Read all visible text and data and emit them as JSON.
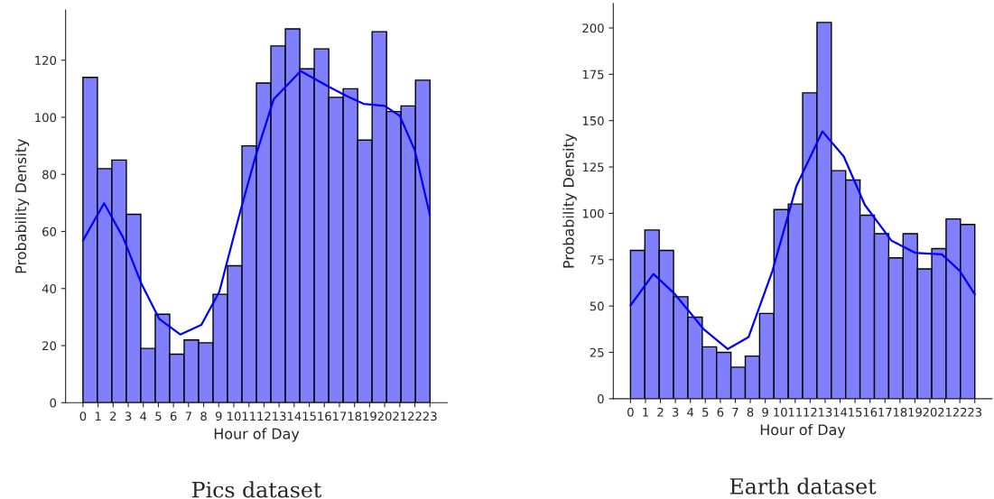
{
  "chart_data": [
    {
      "type": "histogram",
      "xlabel": "Hour of Day",
      "ylabel": "Probability Density",
      "annotations": [
        "Pics dataset"
      ],
      "bins": [
        0,
        0.958,
        1.917,
        2.875,
        3.833,
        4.792,
        5.75,
        6.708,
        7.667,
        8.625,
        9.583,
        10.542,
        11.5,
        12.458,
        13.417,
        14.375,
        15.333,
        16.292,
        17.25,
        18.208,
        19.167,
        20.125,
        21.083,
        22.042,
        23
      ],
      "values": [
        114,
        82,
        85,
        66,
        19,
        31,
        17,
        22,
        21,
        38,
        48,
        90,
        112,
        125,
        131,
        117,
        124,
        107,
        110,
        92,
        130,
        102,
        104,
        113
      ],
      "color": "#8080ff",
      "series": [
        {
          "type": "line",
          "color": "#0000ff",
          "x": [
            0,
            1.4,
            2.66,
            3.85,
            5.05,
            6.45,
            7.85,
            9.04,
            10.44,
            11.44,
            12.64,
            14.43,
            16.2,
            17.43,
            18.6,
            20.0,
            21.0,
            22.0,
            23
          ],
          "values": [
            56.8,
            69.9,
            57.9,
            42,
            29.4,
            23.9,
            27.3,
            38.9,
            67.3,
            86.3,
            106.3,
            116.2,
            111,
            107.6,
            104.7,
            104,
            100.5,
            88.4,
            65.7
          ]
        }
      ],
      "xlim": [
        -1.15,
        24.15
      ],
      "xticks": [
        0,
        1,
        2,
        3,
        4,
        5,
        6,
        7,
        8,
        9,
        10,
        11,
        12,
        13,
        14,
        15,
        16,
        17,
        18,
        19,
        20,
        21,
        22,
        23
      ],
      "ylim": [
        0,
        137.6
      ],
      "yticks": [
        0,
        20,
        40,
        60,
        80,
        100,
        120
      ],
      "grid": false,
      "legend": false
    },
    {
      "type": "histogram",
      "xlabel": "Hour of Day",
      "ylabel": "Probability Density",
      "annotations": [
        "Earth dataset"
      ],
      "bins": [
        0,
        0.958,
        1.917,
        2.875,
        3.833,
        4.792,
        5.75,
        6.708,
        7.667,
        8.625,
        9.583,
        10.542,
        11.5,
        12.458,
        13.417,
        14.375,
        15.333,
        16.292,
        17.25,
        18.208,
        19.167,
        20.125,
        21.083,
        22.042,
        23
      ],
      "values": [
        80,
        91,
        80,
        55,
        44,
        28,
        25,
        17,
        23,
        46,
        102,
        105,
        165,
        203,
        123,
        118,
        99,
        89,
        76,
        89,
        70,
        81,
        97,
        94
      ],
      "color": "#8080ff",
      "series": [
        {
          "type": "line",
          "color": "#0000ff",
          "x": [
            0,
            1.53,
            2.92,
            4.91,
            6.5,
            7.89,
            9.48,
            11.07,
            12.82,
            14.25,
            15.65,
            17.44,
            19.03,
            20.8,
            22.0,
            23
          ],
          "values": [
            50.3,
            67.3,
            56.8,
            37.3,
            26.8,
            33.3,
            68.9,
            114.4,
            144.2,
            130.6,
            104.6,
            85.2,
            78.7,
            77.9,
            68.9,
            56.3
          ]
        }
      ],
      "xlim": [
        -1.15,
        24.15
      ],
      "xticks": [
        0,
        1,
        2,
        3,
        4,
        5,
        6,
        7,
        8,
        9,
        10,
        11,
        12,
        13,
        14,
        15,
        16,
        17,
        18,
        19,
        20,
        21,
        22,
        23
      ],
      "ylim": [
        0,
        213.2
      ],
      "yticks": [
        0,
        25,
        50,
        75,
        100,
        125,
        150,
        175,
        200
      ],
      "grid": false,
      "legend": false
    }
  ]
}
